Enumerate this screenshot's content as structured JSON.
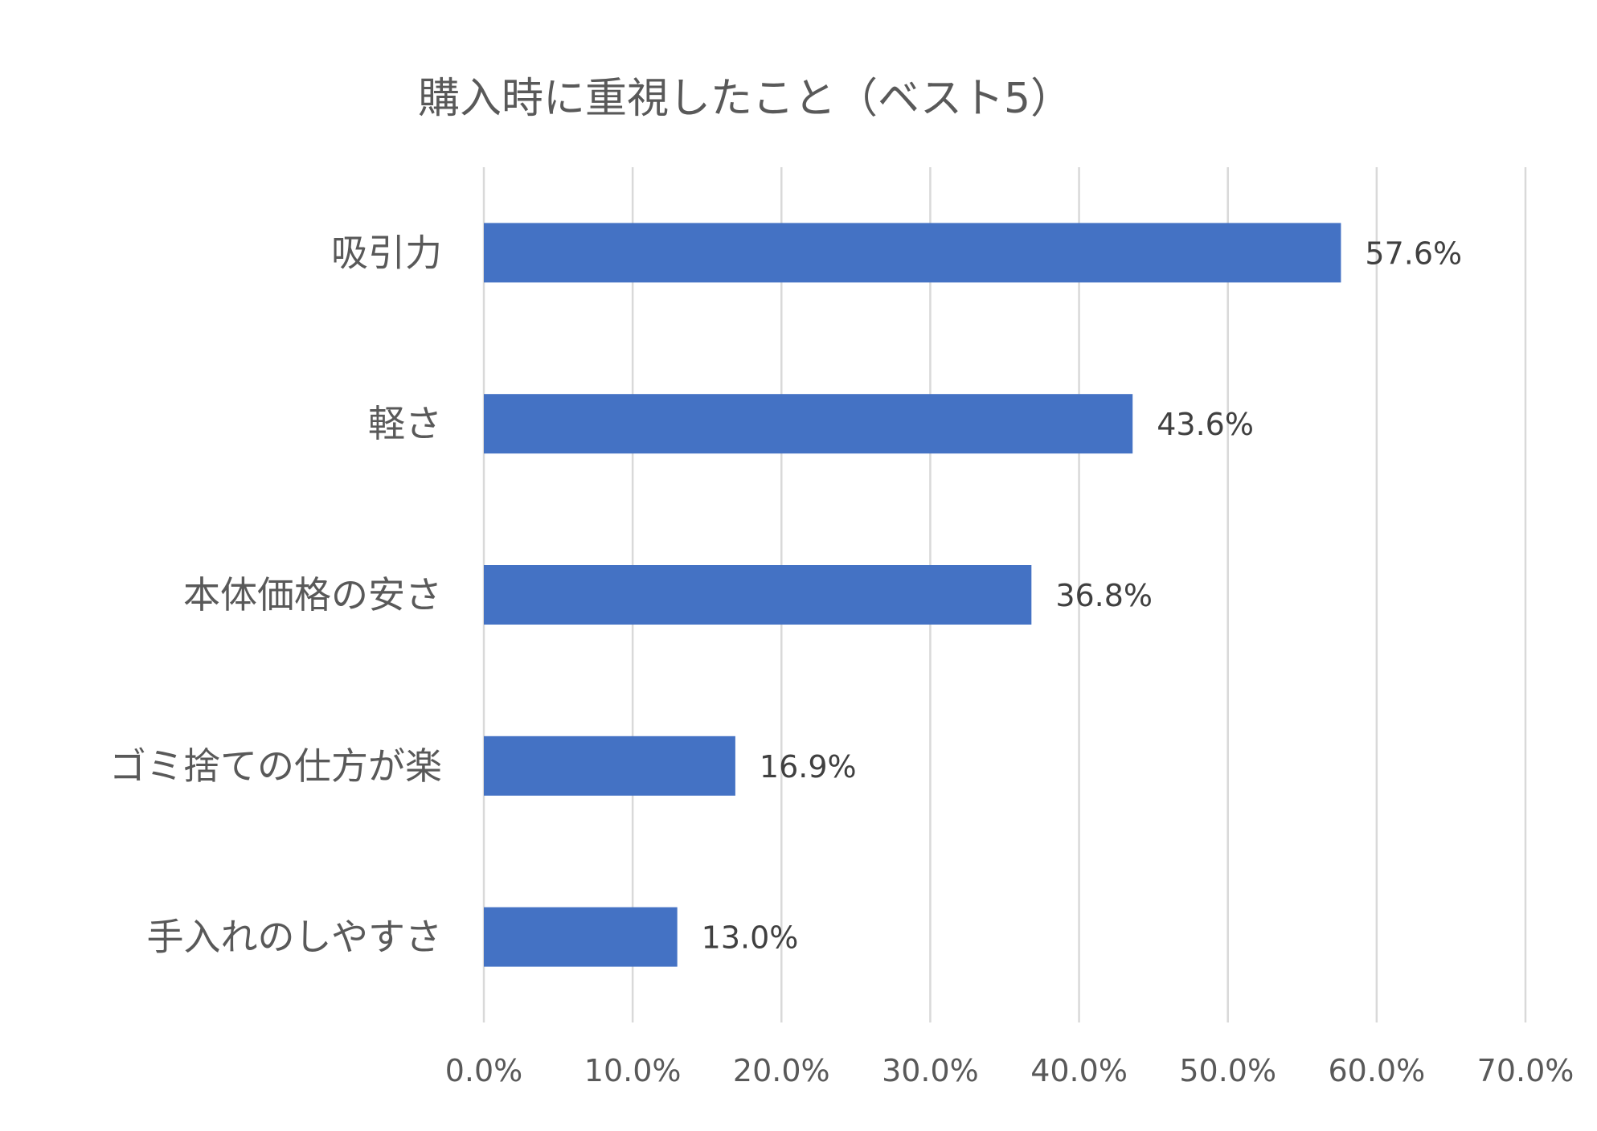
{
  "chart_data": {
    "type": "bar",
    "orientation": "horizontal",
    "title": "購入時に重視したこと（ベスト5）",
    "categories": [
      "吸引力",
      "軽さ",
      "本体価格の安さ",
      "ゴミ捨ての仕方が楽",
      "手入れのしやすさ"
    ],
    "values": [
      57.6,
      43.6,
      36.8,
      16.9,
      13.0
    ],
    "data_labels": [
      "57.6%",
      "43.6%",
      "36.8%",
      "16.9%",
      "13.0%"
    ],
    "xlim": [
      0,
      70
    ],
    "x_ticks": [
      0,
      10,
      20,
      30,
      40,
      50,
      60,
      70
    ],
    "x_tick_labels": [
      "0.0%",
      "10.0%",
      "20.0%",
      "30.0%",
      "40.0%",
      "50.0%",
      "60.0%",
      "70.0%"
    ],
    "xlabel": "",
    "ylabel": "",
    "grid": "vertical",
    "legend": "none",
    "bar_color": "#4472C4"
  }
}
